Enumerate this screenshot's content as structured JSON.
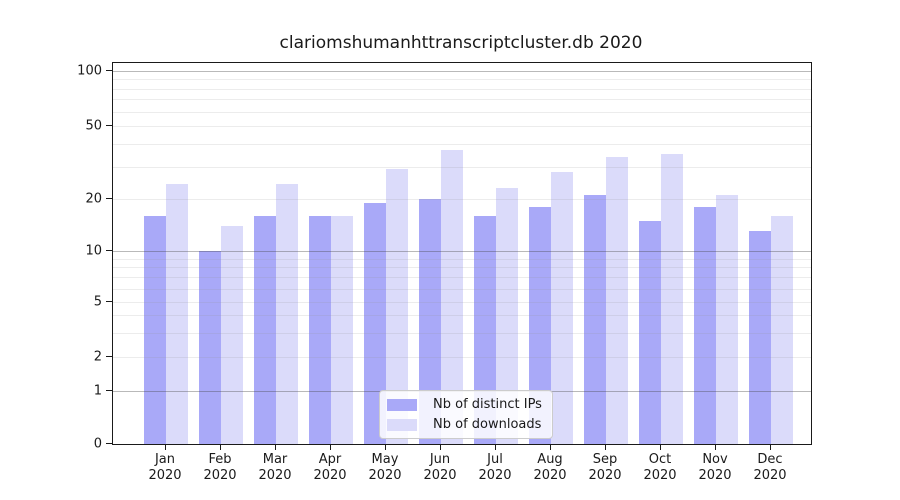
{
  "title": "clariomshumanhttranscriptcluster.db 2020",
  "chart_data": {
    "type": "bar",
    "title": "clariomshumanhttranscriptcluster.db 2020",
    "categories": [
      {
        "month": "Jan",
        "year": "2020"
      },
      {
        "month": "Feb",
        "year": "2020"
      },
      {
        "month": "Mar",
        "year": "2020"
      },
      {
        "month": "Apr",
        "year": "2020"
      },
      {
        "month": "May",
        "year": "2020"
      },
      {
        "month": "Jun",
        "year": "2020"
      },
      {
        "month": "Jul",
        "year": "2020"
      },
      {
        "month": "Aug",
        "year": "2020"
      },
      {
        "month": "Sep",
        "year": "2020"
      },
      {
        "month": "Oct",
        "year": "2020"
      },
      {
        "month": "Nov",
        "year": "2020"
      },
      {
        "month": "Dec",
        "year": "2020"
      }
    ],
    "series": [
      {
        "name": "Nb of distinct IPs",
        "color": "#a9a9f8",
        "values": [
          16,
          10,
          16,
          16,
          19,
          20,
          16,
          18,
          21,
          15,
          18,
          13
        ]
      },
      {
        "name": "Nb of downloads",
        "color": "#dbdbfa",
        "values": [
          24,
          14,
          24,
          16,
          29,
          37,
          23,
          28,
          34,
          35,
          21,
          16
        ]
      }
    ],
    "xlabel": "",
    "ylabel": "",
    "yscale": "log-with-zero",
    "ylim": [
      0,
      110
    ],
    "yticks": [
      0,
      1,
      2,
      5,
      10,
      20,
      50,
      100
    ],
    "grid_major_values": [
      1,
      10,
      100
    ],
    "grid_minor_values": [
      2,
      3,
      4,
      5,
      6,
      7,
      8,
      9,
      20,
      30,
      40,
      50,
      60,
      70,
      80,
      90
    ],
    "grid": true,
    "legend_position": "lower center"
  },
  "legend": {
    "items": [
      {
        "label": "Nb of distinct IPs"
      },
      {
        "label": "Nb of downloads"
      }
    ]
  }
}
